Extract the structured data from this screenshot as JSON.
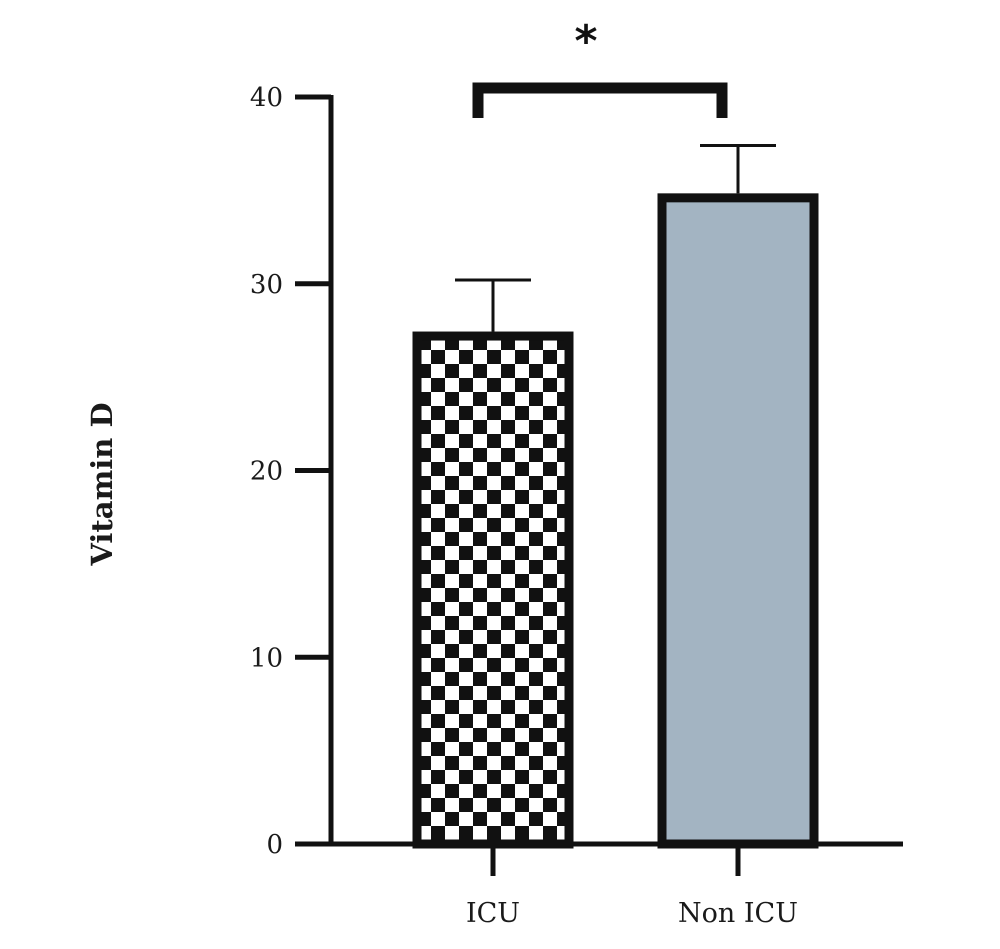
{
  "chart_data": {
    "type": "bar",
    "categories": [
      "ICU",
      "Non ICU"
    ],
    "values": [
      27.2,
      34.6
    ],
    "error_upper": [
      30.2,
      37.4
    ],
    "ylabel": "Vitamin D",
    "xlabel": "",
    "ylim": [
      0,
      40
    ],
    "yticks": [
      0,
      10,
      20,
      30,
      40
    ],
    "grid": false,
    "legend": "none",
    "bar_styles": [
      {
        "fill": "checkerboard",
        "pattern_colors": [
          "#111111",
          "#ffffff"
        ]
      },
      {
        "fill": "#a3b4c2"
      }
    ],
    "significance": {
      "between": [
        "ICU",
        "Non ICU"
      ],
      "label": "*"
    },
    "colors": {
      "outline": "#111111",
      "non_icu_fill": "#a3b4c2"
    }
  }
}
